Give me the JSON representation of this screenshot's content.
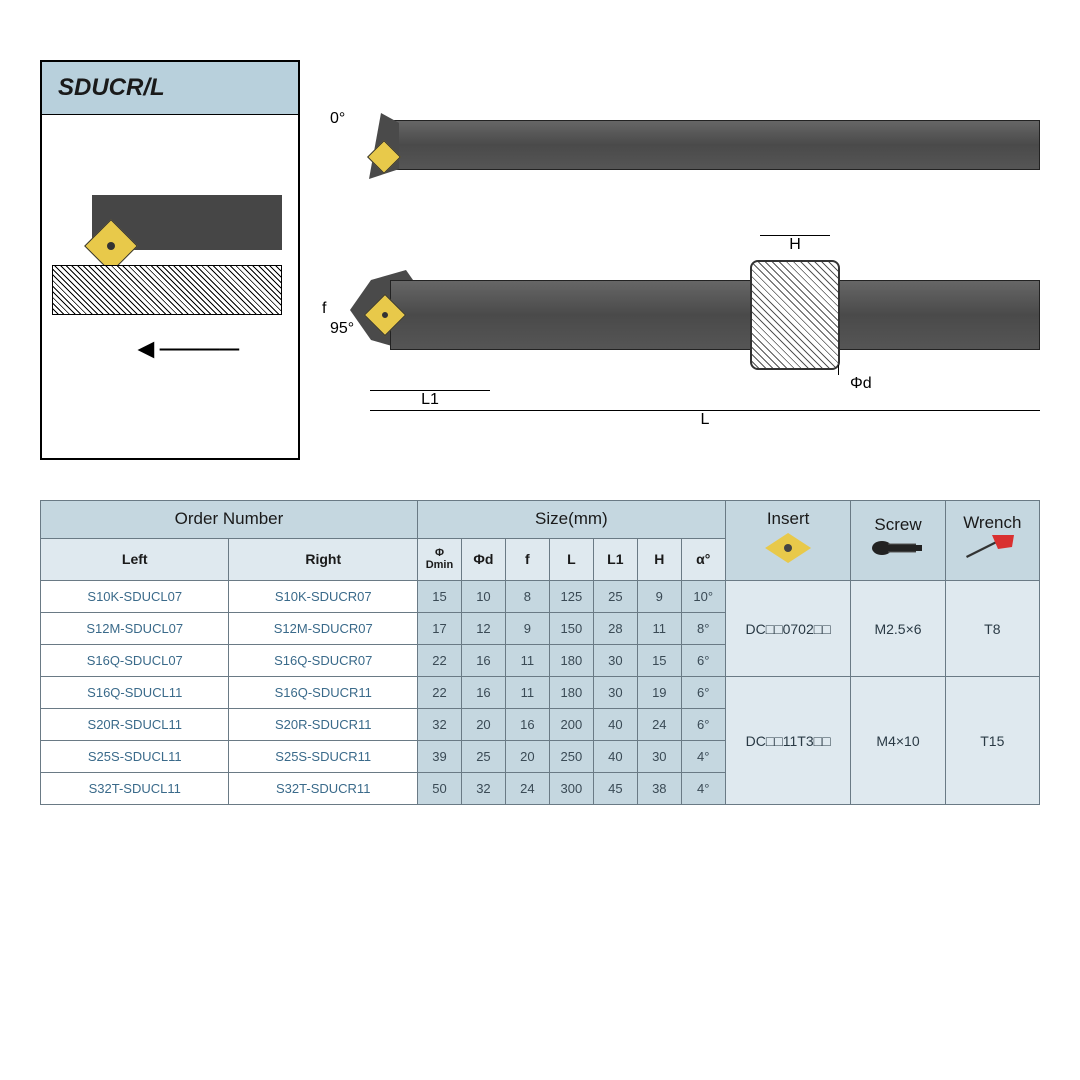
{
  "title": "SDUCR/L",
  "diagram": {
    "angle_top": "0°",
    "angle_side": "95°",
    "dim_L1": "L1",
    "dim_L": "L",
    "dim_H": "H",
    "dim_f": "f",
    "dim_phid": "Φd",
    "tool_color": "#4a4a4a",
    "insert_color": "#e8c94a",
    "label_bg": "#b8d0dc"
  },
  "table": {
    "header_main_bg": "#c5d7e0",
    "header_sub_bg": "#dfe9ef",
    "data_bg": "#c5d7e0",
    "name_bg": "#ffffff",
    "group_bg": "#dfe9ef",
    "border_color": "#6a7a85",
    "headers": {
      "order": "Order Number",
      "size": "Size(mm)",
      "insert": "Insert",
      "screw": "Screw",
      "wrench": "Wrench",
      "left": "Left",
      "right": "Right",
      "dmin": "Φ\nDmin",
      "phid": "Φd",
      "f": "f",
      "L": "L",
      "L1": "L1",
      "H": "H",
      "alpha": "α°"
    },
    "rows": [
      {
        "left": "S10K-SDUCL07",
        "right": "S10K-SDUCR07",
        "dmin": "15",
        "phid": "10",
        "f": "8",
        "L": "125",
        "L1": "25",
        "H": "9",
        "alpha": "10°"
      },
      {
        "left": "S12M-SDUCL07",
        "right": "S12M-SDUCR07",
        "dmin": "17",
        "phid": "12",
        "f": "9",
        "L": "150",
        "L1": "28",
        "H": "11",
        "alpha": "8°"
      },
      {
        "left": "S16Q-SDUCL07",
        "right": "S16Q-SDUCR07",
        "dmin": "22",
        "phid": "16",
        "f": "11",
        "L": "180",
        "L1": "30",
        "H": "15",
        "alpha": "6°"
      },
      {
        "left": "S16Q-SDUCL11",
        "right": "S16Q-SDUCR11",
        "dmin": "22",
        "phid": "16",
        "f": "11",
        "L": "180",
        "L1": "30",
        "H": "19",
        "alpha": "6°"
      },
      {
        "left": "S20R-SDUCL11",
        "right": "S20R-SDUCR11",
        "dmin": "32",
        "phid": "20",
        "f": "16",
        "L": "200",
        "L1": "40",
        "H": "24",
        "alpha": "6°"
      },
      {
        "left": "S25S-SDUCL11",
        "right": "S25S-SDUCR11",
        "dmin": "39",
        "phid": "25",
        "f": "20",
        "L": "250",
        "L1": "40",
        "H": "30",
        "alpha": "4°"
      },
      {
        "left": "S32T-SDUCL11",
        "right": "S32T-SDUCR11",
        "dmin": "50",
        "phid": "32",
        "f": "24",
        "L": "300",
        "L1": "45",
        "H": "38",
        "alpha": "4°"
      }
    ],
    "groups": [
      {
        "span": 3,
        "insert": "DC□□0702□□",
        "screw": "M2.5×6",
        "wrench": "T8"
      },
      {
        "span": 4,
        "insert": "DC□□11T3□□",
        "screw": "M4×10",
        "wrench": "T15"
      }
    ]
  }
}
